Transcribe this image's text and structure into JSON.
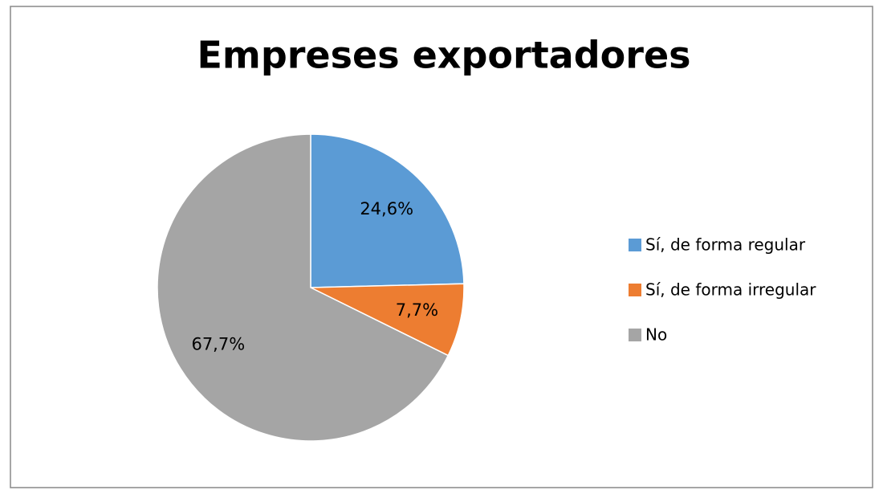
{
  "chart_data": {
    "type": "pie",
    "title": "Empreses exportadores",
    "categories": [
      "Sí, de forma regular",
      "Sí, de forma irregular",
      "No"
    ],
    "values": [
      24.6,
      7.7,
      67.7
    ],
    "value_labels": [
      "24,6%",
      "7,7%",
      "67,7%"
    ],
    "colors": [
      "#5b9bd5",
      "#ed7d31",
      "#a5a5a5"
    ],
    "legend": "right"
  }
}
